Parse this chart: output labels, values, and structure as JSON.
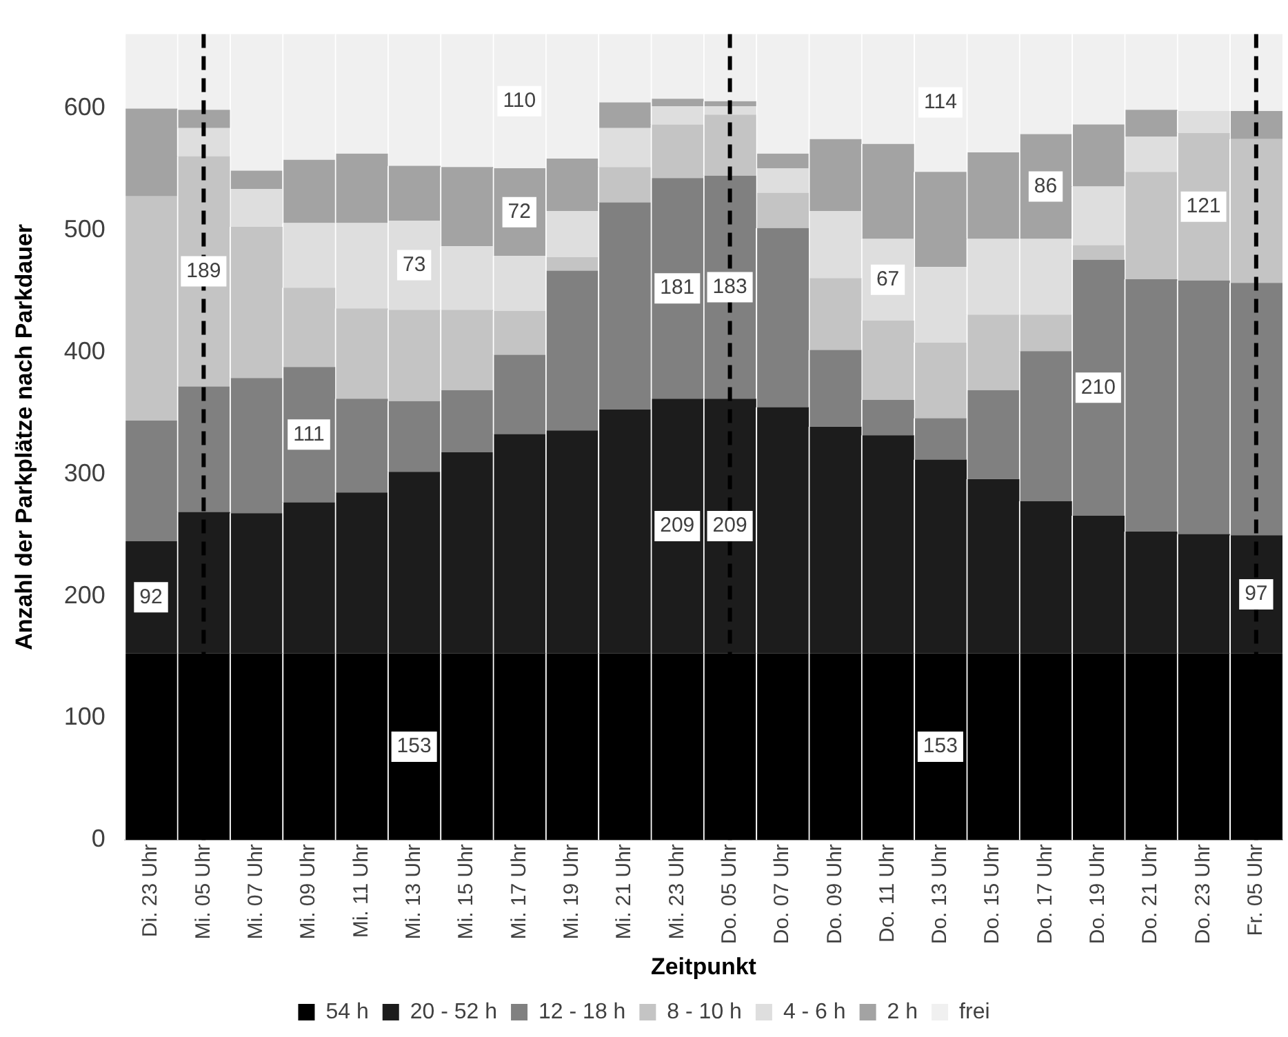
{
  "chart_data": {
    "type": "bar",
    "stacked": true,
    "xlabel": "Zeitpunkt",
    "ylabel": "Anzahl der Parkplätze nach Parkdauer",
    "categories": [
      "Di. 23 Uhr",
      "Mi. 05 Uhr",
      "Mi. 07 Uhr",
      "Mi. 09 Uhr",
      "Mi. 11 Uhr",
      "Mi. 13 Uhr",
      "Mi. 15 Uhr",
      "Mi. 17 Uhr",
      "Mi. 19 Uhr",
      "Mi. 21 Uhr",
      "Mi. 23 Uhr",
      "Do. 05 Uhr",
      "Do. 07 Uhr",
      "Do. 09 Uhr",
      "Do. 11 Uhr",
      "Do. 13 Uhr",
      "Do. 15 Uhr",
      "Do. 17 Uhr",
      "Do. 19 Uhr",
      "Do. 21 Uhr",
      "Do. 23 Uhr",
      "Fr. 05 Uhr"
    ],
    "series": [
      {
        "name": "54 h",
        "color": "#000000",
        "values": [
          153,
          153,
          153,
          153,
          153,
          153,
          153,
          153,
          153,
          153,
          153,
          153,
          153,
          153,
          153,
          153,
          153,
          153,
          153,
          153,
          153,
          153
        ],
        "value_labels": [
          null,
          null,
          null,
          null,
          null,
          "153",
          null,
          null,
          null,
          null,
          null,
          null,
          null,
          null,
          null,
          "153",
          null,
          null,
          null,
          null,
          null,
          null
        ]
      },
      {
        "name": "20 - 52 h",
        "color": "#1c1c1c",
        "values": [
          92,
          116,
          115,
          124,
          132,
          149,
          165,
          180,
          183,
          200,
          209,
          209,
          202,
          186,
          179,
          159,
          143,
          125,
          113,
          100,
          98,
          97
        ],
        "value_labels": [
          "92",
          null,
          null,
          null,
          null,
          null,
          null,
          null,
          null,
          null,
          "209",
          "209",
          null,
          null,
          null,
          null,
          null,
          null,
          null,
          null,
          null,
          "97"
        ]
      },
      {
        "name": "12 - 18 h",
        "color": "#808080",
        "values": [
          99,
          103,
          111,
          111,
          77,
          58,
          51,
          65,
          131,
          170,
          181,
          183,
          147,
          63,
          29,
          34,
          73,
          123,
          210,
          207,
          208,
          207
        ],
        "value_labels": [
          null,
          null,
          null,
          "111",
          null,
          null,
          null,
          null,
          null,
          null,
          "181",
          "183",
          null,
          null,
          null,
          null,
          null,
          null,
          "210",
          null,
          null,
          null
        ]
      },
      {
        "name": "8 - 10 h",
        "color": "#c4c4c4",
        "values": [
          184,
          189,
          124,
          65,
          74,
          75,
          66,
          36,
          11,
          29,
          44,
          50,
          29,
          59,
          65,
          62,
          62,
          30,
          12,
          88,
          121,
          118
        ],
        "value_labels": [
          null,
          "189",
          null,
          null,
          null,
          null,
          null,
          null,
          null,
          null,
          null,
          null,
          null,
          null,
          null,
          null,
          null,
          null,
          null,
          null,
          "121",
          null
        ]
      },
      {
        "name": "4 - 6 h",
        "color": "#dedede",
        "values": [
          0,
          23,
          31,
          53,
          70,
          73,
          52,
          45,
          38,
          32,
          15,
          7,
          20,
          55,
          67,
          62,
          62,
          62,
          48,
          29,
          18,
          0
        ],
        "value_labels": [
          null,
          null,
          null,
          null,
          null,
          "73",
          null,
          null,
          null,
          null,
          null,
          null,
          null,
          null,
          "67",
          null,
          null,
          null,
          null,
          null,
          null,
          null
        ]
      },
      {
        "name": "2 h",
        "color": "#a3a3a3",
        "values": [
          72,
          15,
          15,
          52,
          57,
          45,
          65,
          72,
          43,
          21,
          6,
          4,
          12,
          59,
          78,
          78,
          71,
          86,
          51,
          22,
          0,
          23
        ],
        "value_labels": [
          null,
          null,
          null,
          null,
          null,
          null,
          null,
          "72",
          null,
          null,
          null,
          null,
          null,
          null,
          null,
          null,
          null,
          "86",
          null,
          null,
          null,
          null
        ]
      },
      {
        "name": "frei",
        "color": "#f0f0f0",
        "values": [
          61,
          62,
          112,
          103,
          98,
          108,
          109,
          110,
          102,
          56,
          53,
          55,
          98,
          86,
          90,
          114,
          97,
          82,
          74,
          62,
          63,
          63
        ],
        "value_labels": [
          null,
          null,
          null,
          null,
          null,
          null,
          null,
          "110",
          null,
          null,
          null,
          null,
          null,
          null,
          null,
          "114",
          null,
          null,
          null,
          null,
          null,
          null
        ]
      }
    ],
    "ylim": [
      0,
      661
    ],
    "yticks": [
      0,
      100,
      200,
      300,
      400,
      500,
      600
    ],
    "grid": false,
    "legend": "bottom",
    "ref_lines": [
      {
        "axis": "x",
        "value": "Mi. 05 Uhr",
        "color": "#000000",
        "line_style": "dashed"
      },
      {
        "axis": "x",
        "value": "Do. 05 Uhr",
        "color": "#000000",
        "line_style": "dashed"
      },
      {
        "axis": "x",
        "value": "Fr. 05 Uhr",
        "color": "#000000",
        "line_style": "dashed"
      }
    ]
  }
}
